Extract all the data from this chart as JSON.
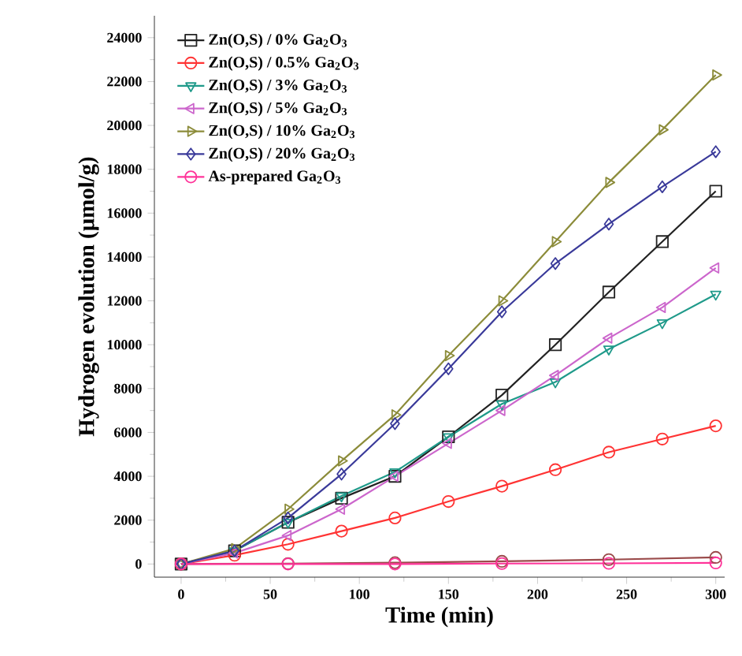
{
  "chart_data": {
    "type": "line",
    "xlabel": "Time (min)",
    "ylabel": "Hydrogen evolution (µmol/g)",
    "xlim": [
      -15,
      305
    ],
    "ylim": [
      -600,
      25000
    ],
    "xticks": [
      0,
      50,
      100,
      150,
      200,
      250,
      300
    ],
    "yticks": [
      0,
      2000,
      4000,
      6000,
      8000,
      10000,
      12000,
      14000,
      16000,
      18000,
      20000,
      22000,
      24000
    ],
    "legend": "top left",
    "grid": false,
    "line_style": "solid",
    "x": [
      0,
      30,
      60,
      90,
      120,
      150,
      180,
      210,
      240,
      270,
      300
    ],
    "series": [
      {
        "name": "Zn(O,S) / 0% Ga$_{2}$O$_{3}$",
        "color": "#222222",
        "marker": "square",
        "values": [
          0,
          600,
          1900,
          3000,
          4000,
          5800,
          7700,
          10000,
          12400,
          14700,
          17000
        ]
      },
      {
        "name": "Zn(O,S) / 0.5% Ga$_{2}$O$_{3}$",
        "color": "#ff3333",
        "marker": "circle",
        "values": [
          0,
          400,
          900,
          1500,
          2100,
          2850,
          3550,
          4300,
          5100,
          5700,
          6300
        ]
      },
      {
        "name": "Zn(O,S) / 3% Ga$_{2}$O$_{3}$",
        "color": "#1f9a8a",
        "marker": "triangle-down",
        "values": [
          0,
          600,
          1900,
          3100,
          4200,
          5800,
          7300,
          8300,
          9800,
          11000,
          12300
        ]
      },
      {
        "name": "Zn(O,S) / 5% Ga$_{2}$O$_{3}$",
        "color": "#cc66cc",
        "marker": "triangle-left",
        "values": [
          0,
          500,
          1300,
          2500,
          4000,
          5500,
          7000,
          8600,
          10300,
          11700,
          13500
        ]
      },
      {
        "name": "Zn(O,S) / 10% Ga$_{2}$O$_{3}$",
        "color": "#8c8c3a",
        "marker": "triangle-right",
        "values": [
          0,
          700,
          2500,
          4700,
          6800,
          9500,
          12000,
          14700,
          17400,
          19800,
          22300
        ]
      },
      {
        "name": "Zn(O,S) / 20% Ga$_{2}$O$_{3}$",
        "color": "#3a3a9a",
        "marker": "diamond",
        "values": [
          0,
          600,
          2100,
          4100,
          6400,
          8900,
          11500,
          13700,
          15500,
          17200,
          18800
        ]
      },
      {
        "color": "#9a4a4a",
        "marker": "circle",
        "x": [
          0,
          60,
          120,
          180,
          240,
          300
        ],
        "values": [
          0,
          20,
          60,
          120,
          200,
          300
        ]
      },
      {
        "name": "As-prepared Ga$_{2}$O$_{3}$",
        "color": "#ff3399",
        "marker": "circle",
        "x": [
          0,
          60,
          120,
          180,
          240,
          300
        ],
        "values": [
          0,
          0,
          0,
          20,
          30,
          50
        ]
      }
    ]
  }
}
